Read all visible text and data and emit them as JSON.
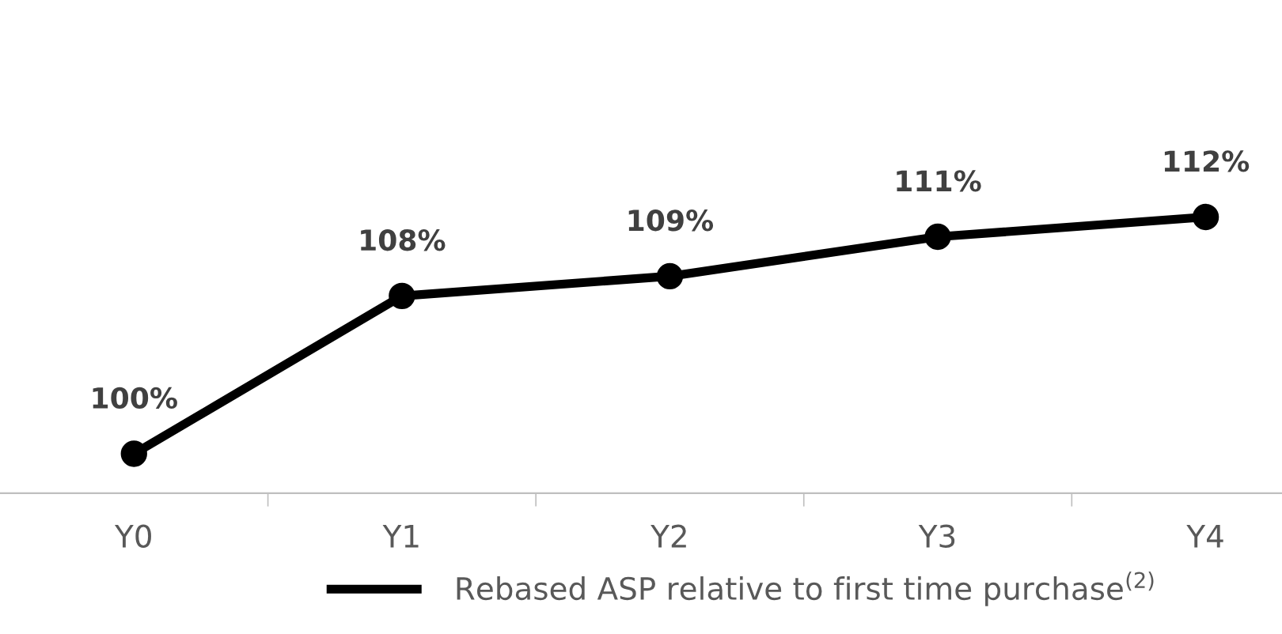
{
  "chart_data": {
    "type": "line",
    "categories": [
      "Y0",
      "Y1",
      "Y2",
      "Y3",
      "Y4"
    ],
    "series": [
      {
        "name": "Rebased ASP relative to first time purchase$^{(2)}$",
        "color": "#000000",
        "values": [
          100,
          108,
          109,
          111,
          112
        ],
        "value_labels": [
          "100%",
          "108%",
          "109%",
          "111%",
          "112%"
        ]
      }
    ],
    "marker": "circle",
    "line_style": "solid",
    "legend": "bottom",
    "grid": false
  }
}
